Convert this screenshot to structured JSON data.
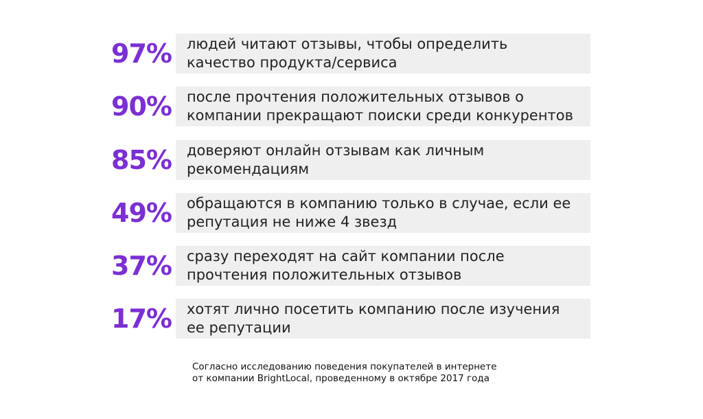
{
  "stats": [
    {
      "percent": "97%",
      "text": "людей читают отзывы, чтобы определить качество продукта/сервиса"
    },
    {
      "percent": "90%",
      "text": "после прочтения положительных отзывов о компании прекращают поиски среди конкурентов"
    },
    {
      "percent": "85%",
      "text": "доверяют онлайн отзывам как личным рекомендациям"
    },
    {
      "percent": "49%",
      "text": "обращаются в компанию только в случае, если ее репутация не ниже 4 звезд"
    },
    {
      "percent": "37%",
      "text": "сразу переходят на сайт компании после прочтения положительных отзывов"
    },
    {
      "percent": "17%",
      "text": "хотят лично посетить компанию после изучения ее репутации"
    }
  ],
  "source": {
    "line1": "Согласно исследованию поведения покупателей в интернете",
    "line2": "от компании BrightLocal, проведенному в октябре 2017 года"
  },
  "colors": {
    "accent": "#7b2fd4",
    "box_background": "#efefef",
    "text": "#222222"
  }
}
